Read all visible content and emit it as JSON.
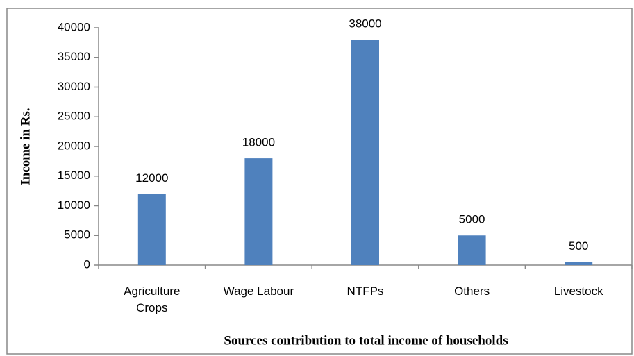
{
  "chart_data": {
    "type": "bar",
    "categories": [
      "Agriculture Crops",
      "Wage Labour",
      "NTFPs",
      "Others",
      "Livestock"
    ],
    "values": [
      12000,
      18000,
      38000,
      5000,
      500
    ],
    "color": "#4f81bd",
    "ylim": [
      0,
      40000
    ],
    "yticks": [
      0,
      5000,
      10000,
      15000,
      20000,
      25000,
      30000,
      35000,
      40000
    ],
    "ylabel": "Income in Rs.",
    "xlabel": "Sources contribution to total income of households",
    "grid": false
  }
}
